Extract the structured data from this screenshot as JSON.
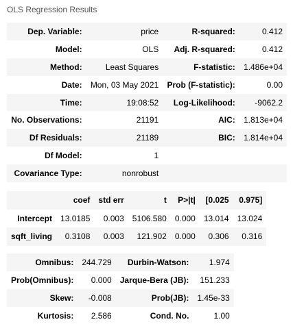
{
  "caption": "OLS Regression Results",
  "summary": [
    {
      "l1": "Dep. Variable:",
      "v1": "price",
      "l2": "R-squared:",
      "v2": "0.412"
    },
    {
      "l1": "Model:",
      "v1": "OLS",
      "l2": "Adj. R-squared:",
      "v2": "0.412"
    },
    {
      "l1": "Method:",
      "v1": "Least Squares",
      "l2": "F-statistic:",
      "v2": "1.486e+04"
    },
    {
      "l1": "Date:",
      "v1": "Mon, 03 May 2021",
      "l2": "Prob (F-statistic):",
      "v2": "0.00"
    },
    {
      "l1": "Time:",
      "v1": "19:08:52",
      "l2": "Log-Likelihood:",
      "v2": "-9062.2"
    },
    {
      "l1": "No. Observations:",
      "v1": "21191",
      "l2": "AIC:",
      "v2": "1.813e+04"
    },
    {
      "l1": "Df Residuals:",
      "v1": "21189",
      "l2": "BIC:",
      "v2": "1.814e+04"
    },
    {
      "l1": "Df Model:",
      "v1": "1",
      "l2": "",
      "v2": ""
    },
    {
      "l1": "Covariance Type:",
      "v1": "nonrobust",
      "l2": "",
      "v2": ""
    }
  ],
  "coef_table": {
    "headers": [
      "",
      "coef",
      "std err",
      "t",
      "P>|t|",
      "[0.025",
      "0.975]"
    ],
    "rows": [
      [
        "Intercept",
        "13.0185",
        "0.003",
        "5106.580",
        "0.000",
        "13.014",
        "13.024"
      ],
      [
        "sqft_living",
        "0.3108",
        "0.003",
        "121.902",
        "0.000",
        "0.306",
        "0.316"
      ]
    ]
  },
  "diagnostics": [
    {
      "l1": "Omnibus:",
      "v1": "244.729",
      "l2": "Durbin-Watson:",
      "v2": "1.974"
    },
    {
      "l1": "Prob(Omnibus):",
      "v1": "0.000",
      "l2": "Jarque-Bera (JB):",
      "v2": "151.233"
    },
    {
      "l1": "Skew:",
      "v1": "-0.008",
      "l2": "Prob(JB):",
      "v2": "1.45e-33"
    },
    {
      "l1": "Kurtosis:",
      "v1": "2.586",
      "l2": "Cond. No.",
      "v2": "1.00"
    }
  ]
}
